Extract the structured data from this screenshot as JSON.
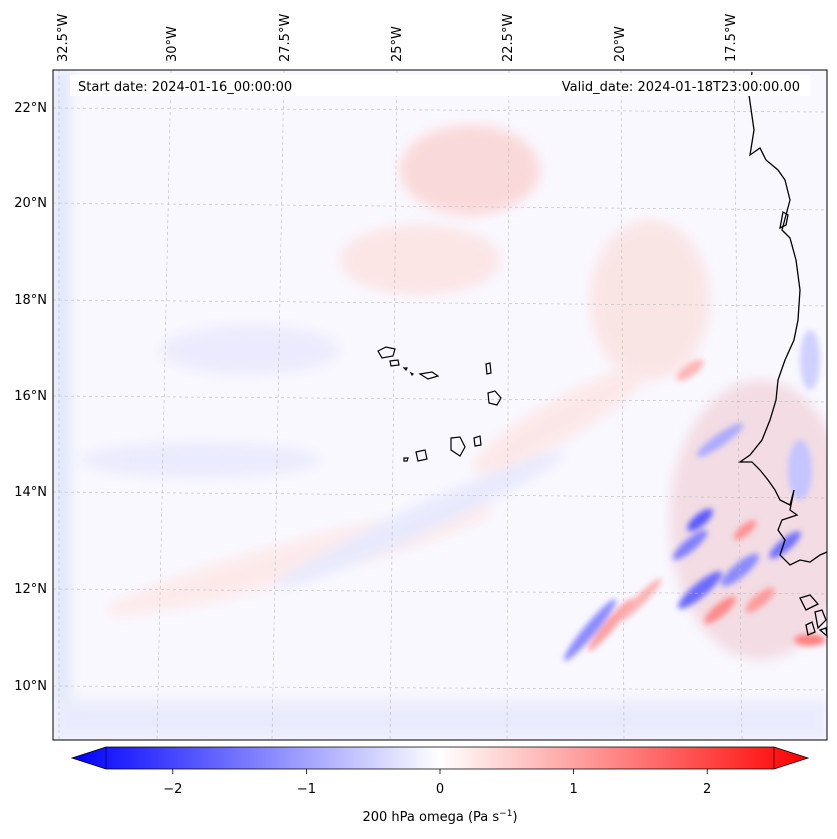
{
  "map": {
    "start_date": "Start date: 2024-01-16_00:00:00",
    "valid_date": "Valid_date: 2024-01-18T23:00:00.00",
    "lon_labels": [
      "32.5°W",
      "30°W",
      "27.5°W",
      "25°W",
      "22.5°W",
      "20°W",
      "17.5°W"
    ],
    "lat_labels": [
      "22°N",
      "20°N",
      "18°N",
      "16°N",
      "14°N",
      "12°N",
      "10°N"
    ],
    "island_group": "Cape Verde",
    "coastline": "West African coast (Mauritania / Senegal)"
  },
  "colorbar": {
    "label": "200 hPa omega (Pa s",
    "unit_exp": "−1",
    "unit_close": ")",
    "ticks": [
      "−2",
      "−1",
      "0",
      "1",
      "2"
    ],
    "tick_values": [
      -2,
      -1,
      0,
      1,
      2
    ],
    "range": [
      -2.5,
      2.5
    ],
    "colormap": "bwr",
    "neg_color": "#0000ff",
    "mid_color": "#ffffff",
    "pos_color": "#ff0000"
  }
}
